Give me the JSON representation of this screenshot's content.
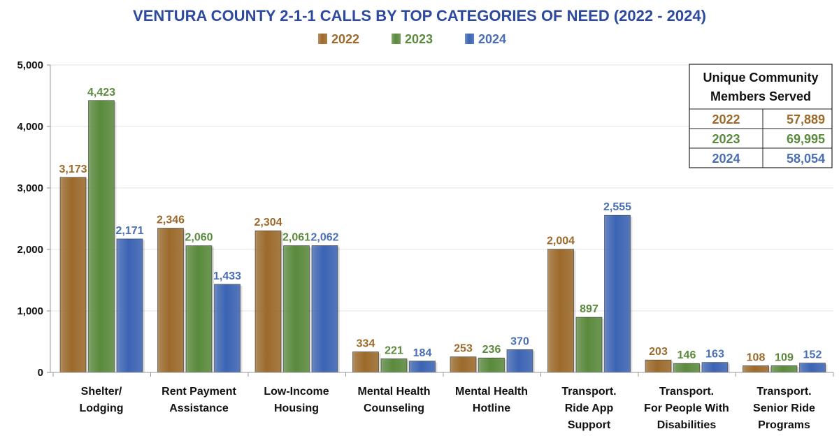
{
  "chart_data": {
    "type": "bar",
    "title": "VENTURA COUNTY 2-1-1 CALLS BY TOP CATEGORIES OF NEED (2022 - 2024)",
    "categories": [
      "Shelter/ Lodging",
      "Rent Payment Assistance",
      "Low-Income Housing",
      "Mental Health Counseling",
      "Mental Health Hotline",
      "Transport. Ride App Support",
      "Transport. For People With Disabilities",
      "Transport. Senior Ride Programs"
    ],
    "category_lines": [
      [
        "Shelter/",
        "Lodging"
      ],
      [
        "Rent Payment",
        "Assistance"
      ],
      [
        "Low-Income",
        "Housing"
      ],
      [
        "Mental Health",
        "Counseling"
      ],
      [
        "Mental Health",
        "Hotline"
      ],
      [
        "Transport.",
        "Ride App",
        "Support"
      ],
      [
        "Transport.",
        "For People With",
        "Disabilities"
      ],
      [
        "Transport.",
        "Senior Ride",
        "Programs"
      ]
    ],
    "series": [
      {
        "name": "2022",
        "color": "#9C6A2B",
        "label_color": "#9C6A2B",
        "values": [
          3173,
          2346,
          2304,
          334,
          253,
          2004,
          203,
          108
        ]
      },
      {
        "name": "2023",
        "color": "#5A8A3C",
        "label_color": "#5A8A3C",
        "values": [
          4423,
          2060,
          2061,
          221,
          236,
          897,
          146,
          109
        ]
      },
      {
        "name": "2024",
        "color": "#3C64B4",
        "label_color": "#4A6FB5",
        "values": [
          2171,
          1433,
          2062,
          184,
          370,
          2555,
          163,
          152
        ]
      }
    ],
    "ylim": [
      0,
      5000
    ],
    "yticks": [
      0,
      1000,
      2000,
      3000,
      4000,
      5000
    ],
    "ytick_labels": [
      "0",
      "1,000",
      "2,000",
      "3,000",
      "4,000",
      "5,000"
    ],
    "xlabel": "",
    "ylabel": "",
    "grid": true,
    "legend_position": "top-center",
    "title_color": "#2E4A9E"
  },
  "summary_table": {
    "header_line1": "Unique Community",
    "header_line2": "Members Served",
    "rows": [
      {
        "year": "2022",
        "value": "57,889",
        "color": "#9C6A2B"
      },
      {
        "year": "2023",
        "value": "69,995",
        "color": "#5A8A3C"
      },
      {
        "year": "2024",
        "value": "58,054",
        "color": "#4A6FB5"
      }
    ]
  }
}
